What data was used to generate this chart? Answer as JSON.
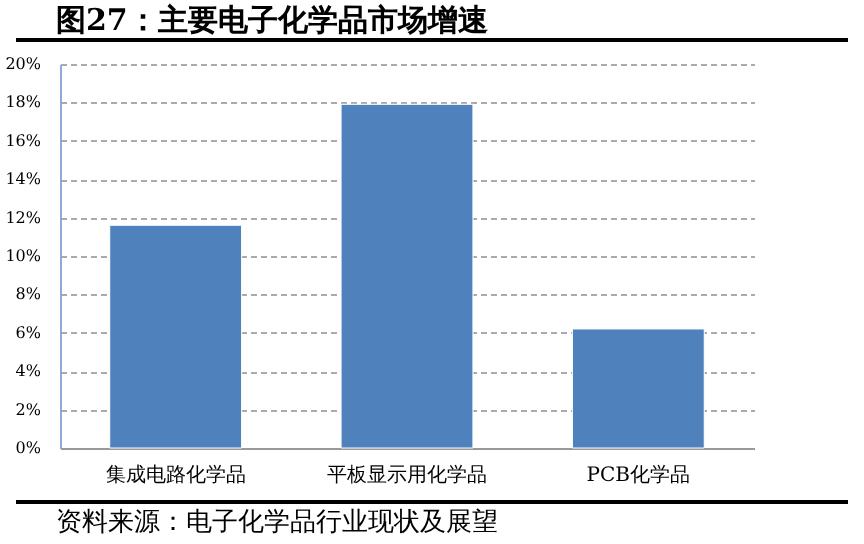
{
  "chart_data": {
    "type": "bar",
    "title": "图27：主要电子化学品市场增速",
    "categories": [
      "集成电路化学品",
      "平板显示用化学品",
      "PCB化学品"
    ],
    "values": [
      11.6,
      17.9,
      6.2
    ],
    "color": "#4f81bd",
    "ylim": [
      0,
      20
    ],
    "yticks": [
      {
        "value": 0,
        "label": "0%"
      },
      {
        "value": 2,
        "label": "2%"
      },
      {
        "value": 4,
        "label": "4%"
      },
      {
        "value": 6,
        "label": "6%"
      },
      {
        "value": 8,
        "label": "8%"
      },
      {
        "value": 10,
        "label": "10%"
      },
      {
        "value": 12,
        "label": "12%"
      },
      {
        "value": 14,
        "label": "14%"
      },
      {
        "value": 16,
        "label": "16%"
      },
      {
        "value": 18,
        "label": "18%"
      },
      {
        "value": 20,
        "label": "20%"
      }
    ],
    "grid": "y",
    "annotations": [
      "资料来源：电子化学品行业现状及展望"
    ]
  }
}
